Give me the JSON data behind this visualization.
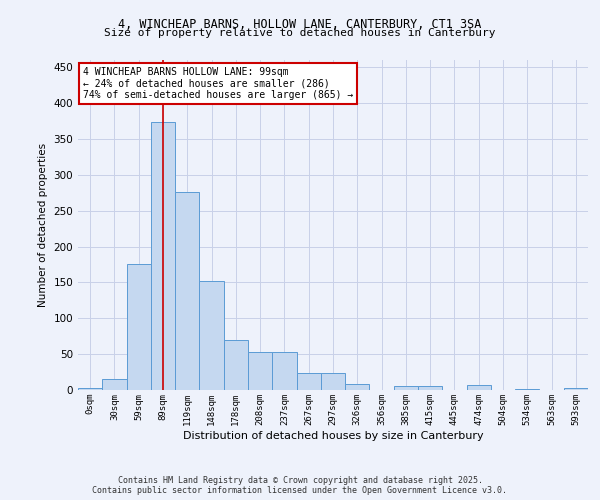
{
  "title1": "4, WINCHEAP BARNS, HOLLOW LANE, CANTERBURY, CT1 3SA",
  "title2": "Size of property relative to detached houses in Canterbury",
  "xlabel": "Distribution of detached houses by size in Canterbury",
  "ylabel": "Number of detached properties",
  "bar_color": "#c5d8f0",
  "bar_edge_color": "#5b9bd5",
  "background_color": "#eef2fb",
  "grid_color": "#c8d0e8",
  "annotation_box_color": "#cc0000",
  "annotation_text": "4 WINCHEAP BARNS HOLLOW LANE: 99sqm\n← 24% of detached houses are smaller (286)\n74% of semi-detached houses are larger (865) →",
  "vline_x": 3,
  "vline_color": "#cc0000",
  "categories": [
    "0sqm",
    "30sqm",
    "59sqm",
    "89sqm",
    "119sqm",
    "148sqm",
    "178sqm",
    "208sqm",
    "237sqm",
    "267sqm",
    "297sqm",
    "326sqm",
    "356sqm",
    "385sqm",
    "415sqm",
    "445sqm",
    "474sqm",
    "504sqm",
    "534sqm",
    "563sqm",
    "593sqm"
  ],
  "values": [
    3,
    16,
    176,
    374,
    276,
    152,
    70,
    53,
    53,
    24,
    24,
    9,
    0,
    6,
    5,
    0,
    7,
    0,
    1,
    0,
    3
  ],
  "ylim": [
    0,
    460
  ],
  "yticks": [
    0,
    50,
    100,
    150,
    200,
    250,
    300,
    350,
    400,
    450
  ],
  "footnote1": "Contains HM Land Registry data © Crown copyright and database right 2025.",
  "footnote2": "Contains public sector information licensed under the Open Government Licence v3.0."
}
